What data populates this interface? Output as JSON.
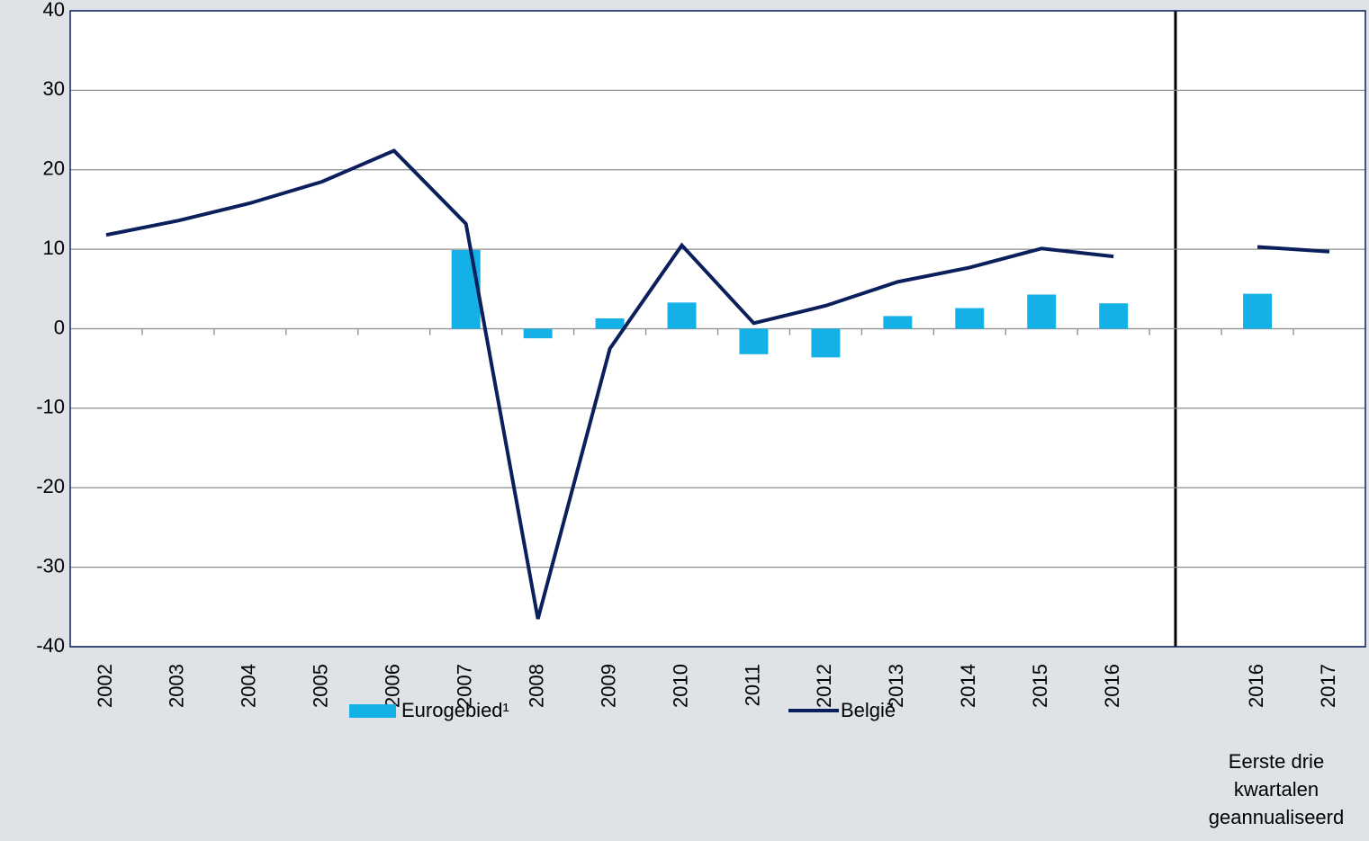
{
  "chart_data": {
    "type": "bar_line",
    "categories": [
      "2002",
      "2003",
      "2004",
      "2005",
      "2006",
      "2007",
      "2008",
      "2009",
      "2010",
      "2011",
      "2012",
      "2013",
      "2014",
      "2015",
      "2016",
      null,
      "2016",
      "2017"
    ],
    "series": [
      {
        "name": "Eurogebied¹",
        "type": "bar",
        "color": "#14b1e7",
        "values": [
          null,
          null,
          null,
          null,
          null,
          9.9,
          -1.2,
          1.3,
          3.3,
          -3.2,
          -3.6,
          1.6,
          2.6,
          4.3,
          3.2,
          null,
          4.4,
          null
        ]
      },
      {
        "name": "België",
        "type": "line",
        "color": "#0b1f5c",
        "values": [
          11.8,
          13.6,
          15.8,
          18.5,
          22.4,
          13.2,
          -36.5,
          -2.5,
          10.5,
          0.7,
          2.9,
          5.9,
          7.7,
          10.1,
          9.1,
          null,
          10.3,
          9.7
        ]
      }
    ],
    "ylim": [
      -40,
      40
    ],
    "yticks": [
      -40,
      -30,
      -20,
      -10,
      0,
      10,
      20,
      30,
      40
    ],
    "grid": true,
    "annotation": [
      "Eerste drie",
      "kwartalen",
      "geannualiseerd"
    ]
  }
}
